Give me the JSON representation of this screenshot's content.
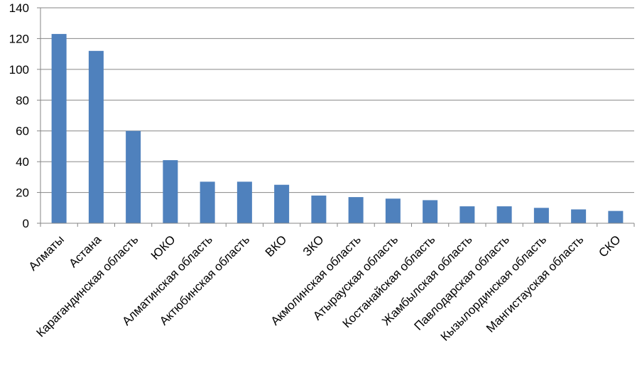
{
  "chart_data": {
    "type": "bar",
    "title": "",
    "xlabel": "",
    "ylabel": "",
    "ylim": [
      0,
      140
    ],
    "yticks": [
      0,
      20,
      40,
      60,
      80,
      100,
      120,
      140
    ],
    "grid": true,
    "legend": "none",
    "bar_color": "#4f81bd",
    "categories": [
      "Алматы",
      "Астана",
      "Карагандинская область",
      "ЮКО",
      "Алматинская область",
      "Актюбинская область",
      "ВКО",
      "ЗКО",
      "Акмолинская область",
      "Атырауская область",
      "Костанайская область",
      "Жамбылская область",
      "Павлодарская область",
      "Кызылординская область",
      "Мангистауская область",
      "СКО"
    ],
    "values": [
      123,
      112,
      60,
      41,
      27,
      27,
      25,
      18,
      17,
      16,
      15,
      11,
      11,
      10,
      9,
      8
    ]
  }
}
